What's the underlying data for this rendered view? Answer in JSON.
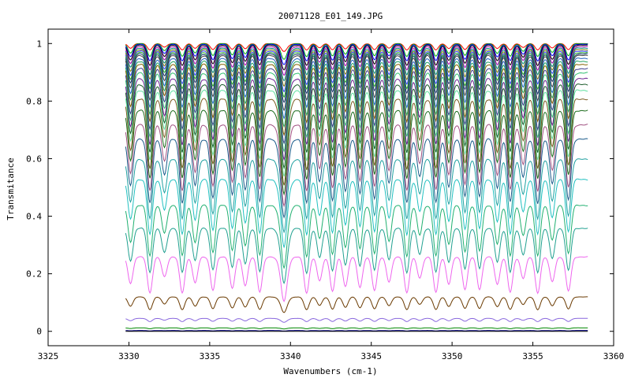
{
  "chart_data": {
    "type": "line",
    "title": "20071128_E01_149.JPG",
    "xlabel": "Wavenumbers (cm-1)",
    "ylabel": "Transmitance",
    "xlim": [
      3325,
      3360
    ],
    "ylim": [
      -0.05,
      1.05
    ],
    "x_ticks": [
      3325,
      3330,
      3335,
      3340,
      3345,
      3350,
      3355,
      3360
    ],
    "y_ticks": [
      0,
      0.2,
      0.4,
      0.6,
      0.8,
      1
    ],
    "x_range": [
      3329.8,
      3358.4
    ],
    "grid": false,
    "legend": "none",
    "absorption_lines": [
      3330.1,
      3331.3,
      3332.2,
      3333.3,
      3334.1,
      3335.2,
      3336.4,
      3337.2,
      3338.1,
      3339.6,
      3341.0,
      3341.8,
      3342.6,
      3343.4,
      3344.3,
      3345.2,
      3346.1,
      3347.2,
      3348.0,
      3349.0,
      3349.8,
      3350.8,
      3351.7,
      3352.8,
      3353.6,
      3354.4,
      3355.3,
      3356.2,
      3357.2
    ],
    "series": [
      {
        "baseline": 1.0,
        "min": 0.97,
        "color": "#ff0000"
      },
      {
        "baseline": 1.0,
        "min": 0.94,
        "color": "#00aa00"
      },
      {
        "baseline": 0.998,
        "min": 0.92,
        "color": "#0000ff"
      },
      {
        "baseline": 0.995,
        "min": 0.9,
        "color": "#000000"
      },
      {
        "baseline": 0.99,
        "min": 0.88,
        "color": "#aa00aa"
      },
      {
        "baseline": 0.985,
        "min": 0.86,
        "color": "#008888"
      },
      {
        "baseline": 0.98,
        "min": 0.84,
        "color": "#7f7f00"
      },
      {
        "baseline": 0.975,
        "min": 0.82,
        "color": "#3333ff"
      },
      {
        "baseline": 0.97,
        "min": 0.8,
        "color": "#22aa22"
      },
      {
        "baseline": 0.965,
        "min": 0.78,
        "color": "#1a3a6e"
      },
      {
        "baseline": 0.96,
        "min": 0.75,
        "color": "#444444"
      },
      {
        "baseline": 0.95,
        "min": 0.72,
        "color": "#2060c0"
      },
      {
        "baseline": 0.94,
        "min": 0.69,
        "color": "#20a060"
      },
      {
        "baseline": 0.93,
        "min": 0.66,
        "color": "#806000"
      },
      {
        "baseline": 0.915,
        "min": 0.63,
        "color": "#3a3a8a"
      },
      {
        "baseline": 0.9,
        "min": 0.6,
        "color": "#30c070"
      },
      {
        "baseline": 0.88,
        "min": 0.57,
        "color": "#6a2090"
      },
      {
        "baseline": 0.86,
        "min": 0.54,
        "color": "#1a5a2a"
      },
      {
        "baseline": 0.84,
        "min": 0.51,
        "color": "#60e0a0"
      },
      {
        "baseline": 0.81,
        "min": 0.48,
        "color": "#7a5a20"
      },
      {
        "baseline": 0.77,
        "min": 0.45,
        "color": "#1a6a1a"
      },
      {
        "baseline": 0.72,
        "min": 0.41,
        "color": "#a05080"
      },
      {
        "baseline": 0.67,
        "min": 0.37,
        "color": "#1a5a8a"
      },
      {
        "baseline": 0.6,
        "min": 0.32,
        "color": "#20a0a0"
      },
      {
        "baseline": 0.53,
        "min": 0.27,
        "color": "#20c0c0"
      },
      {
        "baseline": 0.44,
        "min": 0.2,
        "color": "#20b070"
      },
      {
        "baseline": 0.36,
        "min": 0.15,
        "color": "#20a090"
      },
      {
        "baseline": 0.26,
        "min": 0.09,
        "color": "#ee66ee"
      },
      {
        "baseline": 0.12,
        "min": 0.06,
        "color": "#6a3a00"
      },
      {
        "baseline": 0.045,
        "min": 0.03,
        "color": "#8866dd"
      },
      {
        "baseline": 0.012,
        "min": 0.008,
        "color": "#008800"
      },
      {
        "baseline": 0.003,
        "min": 0.001,
        "color": "#000080"
      },
      {
        "baseline": 0.0,
        "min": 0.0,
        "color": "#000000"
      }
    ]
  }
}
